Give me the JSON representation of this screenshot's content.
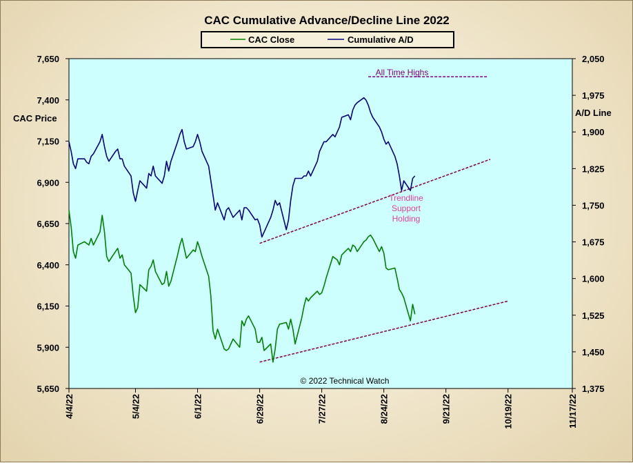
{
  "chart_data": {
    "type": "line",
    "title": "CAC Cumulative  Advance/Decline  Line  2022",
    "y_left_label": "CAC Price",
    "y_right_label": "A/D Line",
    "y_left_lim": [
      5650,
      7650
    ],
    "y_right_lim": [
      1375,
      2050
    ],
    "y_left_ticks": [
      "7,650",
      "7,400",
      "7,150",
      "6,900",
      "6,650",
      "6,400",
      "6,150",
      "5,900",
      "5,650"
    ],
    "y_right_ticks": [
      "2,050",
      "1,975",
      "1,900",
      "1,825",
      "1,750",
      "1,675",
      "1,600",
      "1,525",
      "1,450",
      "1,375"
    ],
    "x_tick_labels": [
      "4/4/22",
      "5/4/22",
      "6/1/22",
      "6/29/22",
      "7/27/22",
      "8/24/22",
      "9/21/22",
      "10/19/22",
      "11/17/22"
    ],
    "x_tick_days": [
      0,
      30,
      58,
      86,
      114,
      142,
      170,
      198,
      227
    ],
    "x_lim_days": [
      0,
      227
    ],
    "grid": false,
    "legend_position": "top-center",
    "colors": {
      "plot_bg": "#ccfffd",
      "cac_close": "#008000",
      "cumulative_ad": "#000080",
      "trendline": "#800040",
      "all_time_highs": "#800080",
      "annotation_pink": "#e0409c"
    },
    "series": [
      {
        "name": "CAC Close",
        "axis": "left",
        "color": "#008000",
        "days": [
          0,
          1,
          2,
          3,
          4,
          7,
          8,
          9,
          10,
          11,
          14,
          15,
          16,
          17,
          18,
          21,
          22,
          23,
          24,
          25,
          28,
          29,
          30,
          31,
          32,
          35,
          36,
          37,
          38,
          39,
          42,
          43,
          44,
          45,
          46,
          49,
          50,
          51,
          52,
          53,
          56,
          57,
          58,
          59,
          60,
          63,
          64,
          65,
          66,
          67,
          70,
          71,
          72,
          73,
          74,
          77,
          78,
          79,
          80,
          81,
          84,
          85,
          86,
          87,
          88,
          91,
          92,
          93,
          94,
          95,
          98,
          99,
          100,
          101,
          102,
          105,
          106,
          107,
          108,
          109,
          112,
          113,
          114,
          115,
          116,
          119,
          120,
          121,
          122,
          123,
          126,
          127,
          128,
          129,
          130,
          133,
          134,
          135,
          136,
          137,
          140,
          141,
          142,
          143,
          144,
          147,
          148,
          149,
          150,
          151,
          154,
          155,
          156
        ],
        "values": [
          6730,
          6630,
          6480,
          6440,
          6520,
          6540,
          6530,
          6520,
          6560,
          6520,
          6600,
          6700,
          6600,
          6450,
          6420,
          6480,
          6500,
          6440,
          6460,
          6400,
          6350,
          6210,
          6110,
          6140,
          6280,
          6240,
          6370,
          6390,
          6430,
          6360,
          6280,
          6290,
          6360,
          6270,
          6300,
          6460,
          6520,
          6560,
          6500,
          6440,
          6490,
          6480,
          6540,
          6500,
          6450,
          6330,
          6210,
          6000,
          5950,
          6010,
          5890,
          5880,
          5890,
          5920,
          5950,
          5900,
          6060,
          6030,
          6070,
          6090,
          6010,
          5930,
          5930,
          5960,
          5880,
          5920,
          5810,
          5890,
          6010,
          6040,
          6050,
          6010,
          6070,
          6010,
          5920,
          6080,
          6150,
          6200,
          6180,
          6200,
          6240,
          6220,
          6230,
          6270,
          6320,
          6450,
          6440,
          6430,
          6400,
          6460,
          6500,
          6480,
          6520,
          6510,
          6480,
          6540,
          6550,
          6570,
          6580,
          6560,
          6480,
          6510,
          6470,
          6380,
          6370,
          6380,
          6320,
          6250,
          6230,
          6200,
          6060,
          6160,
          6100
        ]
      },
      {
        "name": "Cumulative A/D",
        "axis": "right",
        "color": "#000080",
        "days": [
          0,
          1,
          2,
          3,
          4,
          7,
          8,
          9,
          10,
          11,
          14,
          15,
          16,
          17,
          18,
          21,
          22,
          23,
          24,
          25,
          28,
          29,
          30,
          31,
          32,
          35,
          36,
          37,
          38,
          39,
          42,
          43,
          44,
          45,
          46,
          49,
          50,
          51,
          52,
          53,
          56,
          57,
          58,
          59,
          60,
          63,
          64,
          65,
          66,
          67,
          70,
          71,
          72,
          73,
          74,
          77,
          78,
          79,
          80,
          81,
          84,
          85,
          86,
          87,
          88,
          91,
          92,
          93,
          94,
          95,
          98,
          99,
          100,
          101,
          102,
          105,
          106,
          107,
          108,
          109,
          112,
          113,
          114,
          115,
          116,
          119,
          120,
          121,
          122,
          123,
          126,
          127,
          128,
          129,
          130,
          133,
          134,
          135,
          136,
          137,
          140,
          141,
          142,
          143,
          144,
          147,
          148,
          149,
          150,
          151,
          154,
          155,
          156
        ],
        "values": [
          1880,
          1860,
          1835,
          1825,
          1845,
          1845,
          1838,
          1835,
          1850,
          1855,
          1880,
          1895,
          1870,
          1850,
          1840,
          1860,
          1865,
          1845,
          1845,
          1830,
          1810,
          1775,
          1758,
          1780,
          1800,
          1785,
          1815,
          1810,
          1830,
          1810,
          1795,
          1810,
          1840,
          1820,
          1840,
          1880,
          1895,
          1905,
          1880,
          1865,
          1870,
          1880,
          1895,
          1880,
          1860,
          1830,
          1800,
          1770,
          1740,
          1755,
          1720,
          1740,
          1745,
          1735,
          1725,
          1740,
          1720,
          1745,
          1745,
          1740,
          1720,
          1722,
          1710,
          1685,
          1695,
          1725,
          1740,
          1760,
          1750,
          1755,
          1700,
          1720,
          1760,
          1790,
          1805,
          1805,
          1810,
          1810,
          1820,
          1810,
          1840,
          1860,
          1870,
          1880,
          1880,
          1895,
          1890,
          1900,
          1910,
          1930,
          1935,
          1925,
          1945,
          1955,
          1960,
          1970,
          1965,
          1955,
          1940,
          1930,
          1910,
          1900,
          1885,
          1875,
          1880,
          1850,
          1835,
          1810,
          1780,
          1800,
          1780,
          1805,
          1810
        ]
      }
    ],
    "trendlines": [
      {
        "axis": "right",
        "from": [
          86,
          1672
        ],
        "to": [
          190,
          1844
        ]
      },
      {
        "axis": "left",
        "from": [
          86,
          5810
        ],
        "to": [
          198,
          6180
        ]
      },
      {
        "axis": "right",
        "from": [
          135,
          2013
        ],
        "to": [
          189,
          2013
        ]
      }
    ],
    "annotations": {
      "all_time_highs": "All Time Highs",
      "trendline_1": "Trendline",
      "trendline_2": "Support",
      "trendline_3": "Holding",
      "copyright": "© 2022 Technical  Watch"
    }
  }
}
